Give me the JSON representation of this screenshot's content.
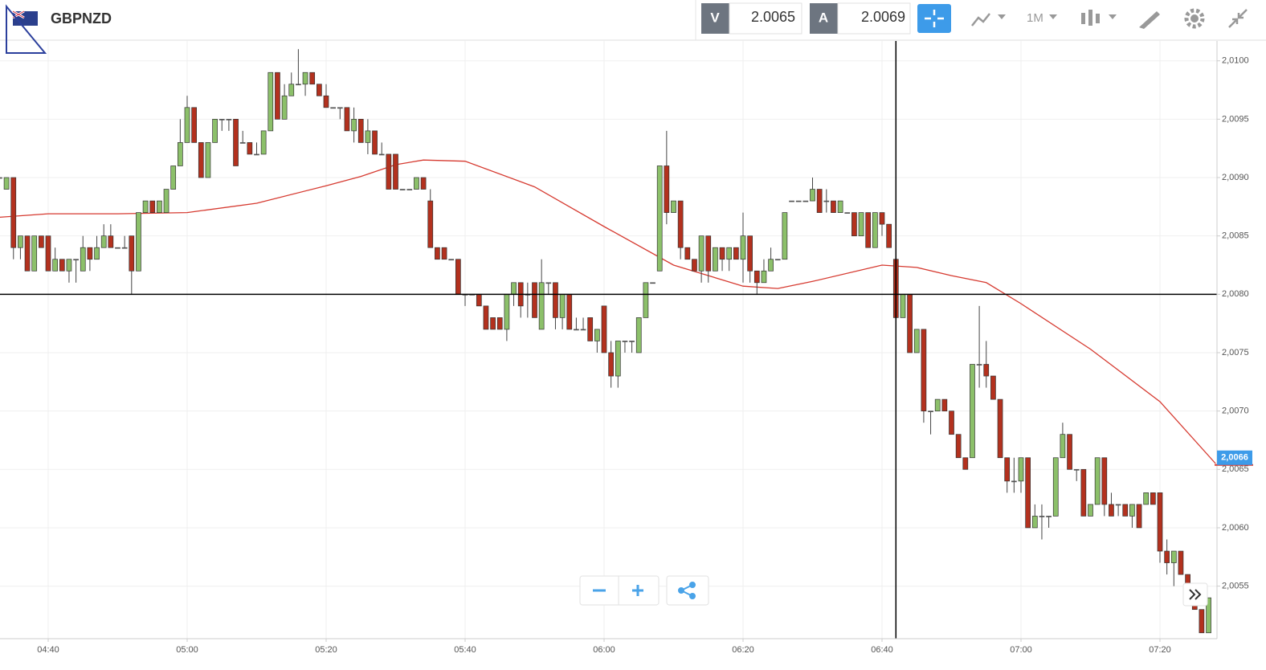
{
  "header": {
    "symbol": "GBPNZD",
    "bid_label": "V",
    "bid": "2.0065",
    "ask_label": "A",
    "ask": "2.0069",
    "timeframe": "1M"
  },
  "chart_data": {
    "type": "candlestick",
    "categories": [
      "04:33",
      "04:34",
      "04:35",
      "04:36",
      "04:37",
      "04:38",
      "04:39",
      "04:40",
      "04:41",
      "04:42",
      "04:43",
      "04:44",
      "04:45",
      "04:46",
      "04:47",
      "04:48",
      "04:49",
      "04:50",
      "04:51",
      "04:52",
      "04:53",
      "04:54",
      "04:55",
      "04:56",
      "04:57",
      "04:58",
      "04:59",
      "05:00",
      "05:01",
      "05:02",
      "05:03",
      "05:04",
      "05:05",
      "05:06",
      "05:07",
      "05:08",
      "05:09",
      "05:10",
      "05:11",
      "05:12",
      "05:13",
      "05:14",
      "05:15",
      "05:16",
      "05:17",
      "05:18",
      "05:19",
      "05:20",
      "05:21",
      "05:22",
      "05:23",
      "05:24",
      "05:25",
      "05:26",
      "05:27",
      "05:28",
      "05:29",
      "05:30",
      "05:31",
      "05:32",
      "05:33",
      "05:34",
      "05:35",
      "05:36",
      "05:37",
      "05:38",
      "05:39",
      "05:40",
      "05:41",
      "05:42",
      "05:43",
      "05:44",
      "05:45",
      "05:46",
      "05:47",
      "05:48",
      "05:49",
      "05:50",
      "05:51",
      "05:52",
      "05:53",
      "05:54",
      "05:55",
      "05:56",
      "05:57",
      "05:58",
      "05:59",
      "06:00",
      "06:01",
      "06:02",
      "06:03",
      "06:04",
      "06:05",
      "06:06",
      "06:07",
      "06:08",
      "06:09",
      "06:10",
      "06:11",
      "06:12",
      "06:13",
      "06:14",
      "06:15",
      "06:16",
      "06:17",
      "06:18",
      "06:19",
      "06:20",
      "06:21",
      "06:22",
      "06:23",
      "06:24",
      "06:25",
      "06:26",
      "06:27",
      "06:28",
      "06:29",
      "06:30",
      "06:31",
      "06:32",
      "06:33",
      "06:34",
      "06:35",
      "06:36",
      "06:37",
      "06:38",
      "06:39",
      "06:40",
      "06:41",
      "06:42",
      "06:43",
      "06:44",
      "06:45",
      "06:46",
      "06:47",
      "06:48",
      "06:49",
      "06:50",
      "06:51",
      "06:52",
      "06:53",
      "06:54",
      "06:55",
      "06:56",
      "06:57",
      "06:58",
      "06:59",
      "07:00",
      "07:01",
      "07:02",
      "07:03",
      "07:04",
      "07:05",
      "07:06",
      "07:07",
      "07:08",
      "07:09",
      "07:10",
      "07:11",
      "07:12",
      "07:13",
      "07:14",
      "07:15",
      "07:16",
      "07:17",
      "07:18",
      "07:19",
      "07:20",
      "07:21",
      "07:22",
      "07:23",
      "07:24",
      "07:25",
      "07:26",
      "07:27"
    ],
    "open": [
      2.009,
      2.0089,
      2.009,
      2.0084,
      2.0085,
      2.0082,
      2.0085,
      2.0085,
      2.0082,
      2.0083,
      2.0082,
      2.0083,
      2.0082,
      2.0084,
      2.0083,
      2.0084,
      2.0085,
      2.0084,
      2.0084,
      2.0085,
      2.0082,
      2.0087,
      2.0088,
      2.0087,
      2.0087,
      2.0089,
      2.0091,
      2.0093,
      2.0096,
      2.0093,
      2.009,
      2.0093,
      2.0095,
      2.0095,
      2.0095,
      2.0093,
      2.0093,
      2.0092,
      2.0092,
      2.0094,
      2.0099,
      2.0095,
      2.0097,
      2.0098,
      2.0098,
      2.0099,
      2.0098,
      2.0097,
      2.0096,
      2.0096,
      2.0096,
      2.0094,
      2.0095,
      2.0093,
      2.0094,
      2.0092,
      2.0092,
      2.0092,
      2.0089,
      2.0089,
      2.0089,
      2.009,
      2.0088,
      2.0084,
      2.0084,
      2.0083,
      2.0083,
      2.008,
      2.008,
      2.008,
      2.0079,
      2.0078,
      2.0078,
      2.0077,
      2.008,
      2.0081,
      2.008,
      2.0081,
      2.0077,
      2.0081,
      2.0081,
      2.0078,
      2.008,
      2.0077,
      2.0077,
      2.0078,
      2.0076,
      2.0079,
      2.0075,
      2.0073,
      2.0076,
      2.0076,
      2.0075,
      2.0078,
      2.0081,
      2.0082,
      2.0091,
      2.0087,
      2.0088,
      2.0084,
      2.0083,
      2.0082,
      2.0085,
      2.0082,
      2.0084,
      2.0083,
      2.0084,
      2.0083,
      2.0085,
      2.0082,
      2.0081,
      2.0082,
      2.0083,
      2.0083,
      2.0088,
      2.0088,
      2.0088,
      2.0088,
      2.0089,
      2.0088,
      2.0088,
      2.0087,
      2.0087,
      2.0087,
      2.0085,
      2.0087,
      2.0084,
      2.0087,
      2.0086,
      2.0083,
      2.0078,
      2.008,
      2.0075,
      2.0077,
      2.007,
      2.007,
      2.0071,
      2.007,
      2.0068,
      2.0066,
      2.0066,
      2.0074,
      2.0074,
      2.0073,
      2.0071,
      2.0066,
      2.0064,
      2.0064,
      2.0066,
      2.006,
      2.0061,
      2.0061,
      2.0061,
      2.0066,
      2.0068,
      2.0065,
      2.0065,
      2.0061,
      2.0062,
      2.0066,
      2.0062,
      2.0062,
      2.0062,
      2.0061,
      2.0062,
      2.0062,
      2.0063,
      2.0063,
      2.0058,
      2.0057,
      2.0058,
      2.0056,
      2.0054,
      2.0053,
      2.0051
    ],
    "high": [
      2.0091,
      2.009,
      2.009,
      2.0085,
      2.0085,
      2.0085,
      2.0085,
      2.0085,
      2.0084,
      2.0083,
      2.0083,
      2.0083,
      2.0085,
      2.0084,
      2.0085,
      2.0086,
      2.0086,
      2.0084,
      2.0085,
      2.0085,
      2.0087,
      2.0088,
      2.0088,
      2.0088,
      2.0089,
      2.0091,
      2.0095,
      2.0097,
      2.0096,
      2.0093,
      2.0093,
      2.0095,
      2.0095,
      2.0095,
      2.0095,
      2.0094,
      2.0093,
      2.0093,
      2.0094,
      2.0099,
      2.0099,
      2.0098,
      2.0099,
      2.0101,
      2.0099,
      2.0099,
      2.0098,
      2.0098,
      2.0096,
      2.0096,
      2.0096,
      2.0096,
      2.0095,
      2.0095,
      2.0094,
      2.0093,
      2.0092,
      2.0092,
      2.0089,
      2.0089,
      2.009,
      2.009,
      2.0089,
      2.0084,
      2.0084,
      2.0083,
      2.0083,
      2.008,
      2.008,
      2.008,
      2.0079,
      2.0078,
      2.0078,
      2.008,
      2.0081,
      2.0081,
      2.0081,
      2.0081,
      2.0083,
      2.0081,
      2.0081,
      2.008,
      2.008,
      2.0078,
      2.0078,
      2.0078,
      2.0077,
      2.0079,
      2.0076,
      2.0076,
      2.0076,
      2.0076,
      2.0078,
      2.0081,
      2.0081,
      2.0091,
      2.0094,
      2.0088,
      2.0088,
      2.0084,
      2.0083,
      2.0085,
      2.0085,
      2.0084,
      2.0084,
      2.0084,
      2.0084,
      2.0087,
      2.0085,
      2.0082,
      2.0083,
      2.0084,
      2.0083,
      2.0087,
      2.0088,
      2.0088,
      2.0088,
      2.009,
      2.0089,
      2.0089,
      2.0088,
      2.0088,
      2.0087,
      2.0087,
      2.0087,
      2.0087,
      2.0087,
      2.0087,
      2.0086,
      2.0083,
      2.008,
      2.008,
      2.0077,
      2.0077,
      2.007,
      2.0071,
      2.0071,
      2.007,
      2.0068,
      2.0066,
      2.0074,
      2.0079,
      2.0076,
      2.0073,
      2.0071,
      2.0066,
      2.0066,
      2.0066,
      2.0066,
      2.0062,
      2.0062,
      2.0061,
      2.0066,
      2.0069,
      2.0068,
      2.0065,
      2.0065,
      2.0062,
      2.0066,
      2.0066,
      2.0063,
      2.0062,
      2.0062,
      2.0062,
      2.0062,
      2.0063,
      2.0063,
      2.0063,
      2.0059,
      2.0058,
      2.0058,
      2.0056,
      2.0054,
      2.0053,
      2.0054
    ],
    "low": [
      2.0089,
      2.0089,
      2.0083,
      2.0083,
      2.0082,
      2.0082,
      2.0084,
      2.0082,
      2.0082,
      2.0082,
      2.0081,
      2.0081,
      2.0082,
      2.0082,
      2.0083,
      2.0084,
      2.0084,
      2.0084,
      2.0084,
      2.008,
      2.0082,
      2.0087,
      2.0087,
      2.0087,
      2.0087,
      2.0089,
      2.0091,
      2.0093,
      2.0093,
      2.009,
      2.009,
      2.0093,
      2.0094,
      2.0094,
      2.0091,
      2.0093,
      2.0092,
      2.0092,
      2.0092,
      2.0094,
      2.0095,
      2.0095,
      2.0097,
      2.0098,
      2.0097,
      2.0098,
      2.0097,
      2.0096,
      2.0096,
      2.0095,
      2.0094,
      2.0093,
      2.0093,
      2.0092,
      2.0092,
      2.0092,
      2.0089,
      2.0089,
      2.0089,
      2.0089,
      2.0089,
      2.0089,
      2.0084,
      2.0083,
      2.0083,
      2.0083,
      2.008,
      2.0079,
      2.008,
      2.0079,
      2.0077,
      2.0077,
      2.0077,
      2.0076,
      2.0079,
      2.0078,
      2.0078,
      2.0078,
      2.0077,
      2.008,
      2.0077,
      2.0077,
      2.0077,
      2.0077,
      2.0077,
      2.0076,
      2.0075,
      2.0075,
      2.0072,
      2.0072,
      2.0075,
      2.0075,
      2.0075,
      2.0078,
      2.0081,
      2.0082,
      2.0086,
      2.0087,
      2.0083,
      2.0083,
      2.0082,
      2.0081,
      2.0081,
      2.0082,
      2.0082,
      2.0082,
      2.0083,
      2.0081,
      2.0081,
      2.008,
      2.0081,
      2.0082,
      2.0083,
      2.0083,
      2.0088,
      2.0088,
      2.0088,
      2.0088,
      2.0087,
      2.0087,
      2.0087,
      2.0087,
      2.0087,
      2.0085,
      2.0085,
      2.0084,
      2.0084,
      2.0085,
      2.0084,
      2.0078,
      2.0078,
      2.0075,
      2.0075,
      2.0069,
      2.0068,
      2.007,
      2.007,
      2.0068,
      2.0066,
      2.0065,
      2.0066,
      2.0072,
      2.0072,
      2.0071,
      2.0066,
      2.0063,
      2.0063,
      2.0063,
      2.006,
      2.006,
      2.0059,
      2.006,
      2.0061,
      2.0066,
      2.0065,
      2.0064,
      2.0061,
      2.0061,
      2.0062,
      2.0061,
      2.0061,
      2.0061,
      2.0061,
      2.006,
      2.006,
      2.0062,
      2.0062,
      2.0057,
      2.0056,
      2.0055,
      2.0056,
      2.0055,
      2.0053,
      2.0051,
      2.0051
    ],
    "close": [
      2.009,
      2.009,
      2.0084,
      2.0085,
      2.0082,
      2.0085,
      2.0084,
      2.0082,
      2.0083,
      2.0082,
      2.0083,
      2.0083,
      2.0084,
      2.0083,
      2.0084,
      2.0085,
      2.0084,
      2.0084,
      2.0084,
      2.0082,
      2.0087,
      2.0088,
      2.0087,
      2.0088,
      2.0089,
      2.0091,
      2.0093,
      2.0096,
      2.0093,
      2.009,
      2.0093,
      2.0095,
      2.0095,
      2.0095,
      2.0091,
      2.0093,
      2.0092,
      2.0092,
      2.0094,
      2.0099,
      2.0095,
      2.0097,
      2.0098,
      2.0098,
      2.0099,
      2.0098,
      2.0097,
      2.0096,
      2.0096,
      2.0096,
      2.0094,
      2.0095,
      2.0093,
      2.0094,
      2.0092,
      2.0092,
      2.0089,
      2.0089,
      2.0089,
      2.0089,
      2.009,
      2.0089,
      2.0084,
      2.0083,
      2.0083,
      2.0083,
      2.008,
      2.008,
      2.008,
      2.0079,
      2.0077,
      2.0077,
      2.0077,
      2.008,
      2.0081,
      2.0079,
      2.008,
      2.0078,
      2.0081,
      2.0081,
      2.0078,
      2.008,
      2.0077,
      2.0077,
      2.0077,
      2.0076,
      2.0077,
      2.0075,
      2.0073,
      2.0076,
      2.0076,
      2.0076,
      2.0078,
      2.0081,
      2.0081,
      2.0091,
      2.0087,
      2.0088,
      2.0084,
      2.0083,
      2.0082,
      2.0085,
      2.0082,
      2.0084,
      2.0083,
      2.0084,
      2.0083,
      2.0085,
      2.0082,
      2.0081,
      2.0082,
      2.0083,
      2.0083,
      2.0087,
      2.0088,
      2.0088,
      2.0088,
      2.0089,
      2.0087,
      2.0088,
      2.0087,
      2.0088,
      2.0087,
      2.0085,
      2.0087,
      2.0084,
      2.0087,
      2.0086,
      2.0084,
      2.0078,
      2.008,
      2.0075,
      2.0077,
      2.007,
      2.007,
      2.0071,
      2.007,
      2.0068,
      2.0066,
      2.0065,
      2.0074,
      2.0074,
      2.0073,
      2.0071,
      2.0066,
      2.0064,
      2.0064,
      2.0066,
      2.006,
      2.0061,
      2.0061,
      2.0061,
      2.0066,
      2.0068,
      2.0065,
      2.0065,
      2.0061,
      2.0062,
      2.0066,
      2.0062,
      2.0061,
      2.0062,
      2.0061,
      2.0062,
      2.006,
      2.0063,
      2.0062,
      2.0058,
      2.0057,
      2.0058,
      2.0056,
      2.0055,
      2.0053,
      2.0051,
      2.0054
    ],
    "up_color": "#8cc06a",
    "down_color": "#b3311e",
    "moving_average": {
      "color": "#d63a30",
      "x": [
        "04:33",
        "04:40",
        "04:50",
        "05:00",
        "05:10",
        "05:20",
        "05:25",
        "05:30",
        "05:34",
        "05:40",
        "05:50",
        "06:00",
        "06:10",
        "06:20",
        "06:25",
        "06:30",
        "06:40",
        "06:45",
        "06:50",
        "06:55",
        "07:00",
        "07:10",
        "07:20",
        "07:28"
      ],
      "values": [
        2.00866,
        2.00869,
        2.00869,
        2.0087,
        2.00878,
        2.00893,
        2.00901,
        2.00911,
        2.00915,
        2.00914,
        2.00892,
        2.00858,
        2.00825,
        2.00807,
        2.00805,
        2.00811,
        2.00825,
        2.00823,
        2.00816,
        2.0081,
        2.00792,
        2.00753,
        2.00708,
        2.00655
      ]
    },
    "ylim": [
      2.00505,
      2.01017
    ],
    "yticks": [
      {
        "value": 2.0055,
        "label": "2,0055"
      },
      {
        "value": 2.006,
        "label": "2,0060"
      },
      {
        "value": 2.0065,
        "label": "2,0065"
      },
      {
        "value": 2.007,
        "label": "2,0070"
      },
      {
        "value": 2.0075,
        "label": "2,0075"
      },
      {
        "value": 2.008,
        "label": "2,0080"
      },
      {
        "value": 2.0085,
        "label": "2,0085"
      },
      {
        "value": 2.009,
        "label": "2,0090"
      },
      {
        "value": 2.0095,
        "label": "2,0095"
      },
      {
        "value": 2.01,
        "label": "2,0100"
      }
    ],
    "xticks": [
      "04:40",
      "05:00",
      "05:20",
      "05:40",
      "06:00",
      "06:20",
      "06:40",
      "07:00",
      "07:20"
    ],
    "grid": true,
    "crosshair": {
      "x": "06:42",
      "y": 2.008
    },
    "last_price": {
      "value": 2.0066,
      "label": "2,0066",
      "color": "#3d9be9"
    }
  }
}
